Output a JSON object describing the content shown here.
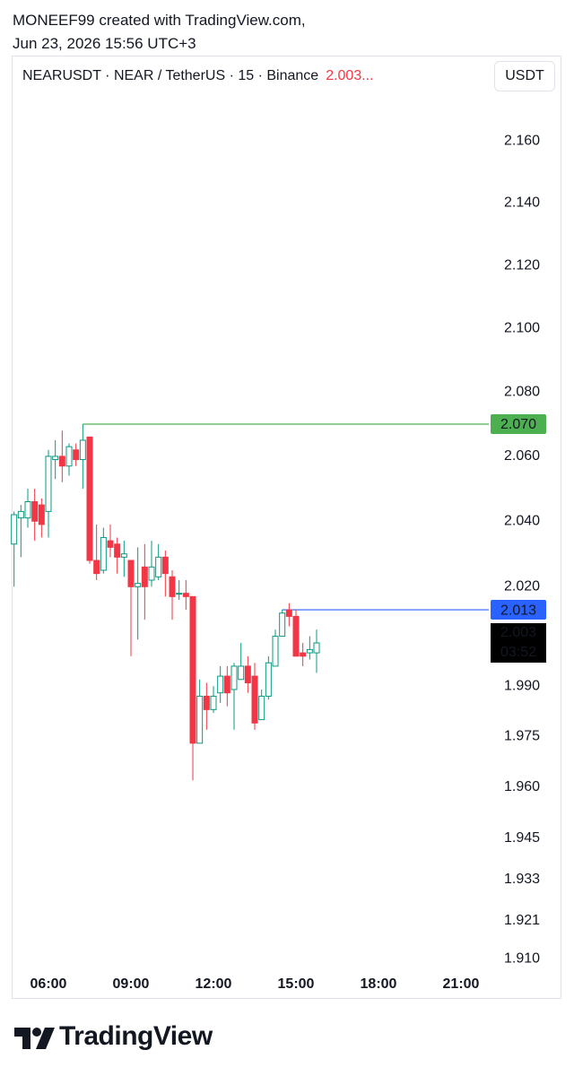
{
  "header": {
    "line1": "MONEEF99 created with TradingView.com,",
    "line2": "Jun 23, 2026 15:56 UTC+3"
  },
  "chart_data": {
    "type": "candlestick",
    "symbol_label": "NEARUSDT · NEAR / TetherUS · 15 · Binance",
    "last_price_label": "2.003...",
    "currency": "USDT",
    "log_scale": true,
    "up_color": "#089981",
    "down_color": "#f23645",
    "x": [
      "04:45",
      "05:00",
      "05:15",
      "05:30",
      "05:45",
      "06:00",
      "06:15",
      "06:30",
      "06:45",
      "07:00",
      "07:15",
      "07:30",
      "07:45",
      "08:00",
      "08:15",
      "08:30",
      "08:45",
      "09:00",
      "09:15",
      "09:30",
      "09:45",
      "10:00",
      "10:15",
      "10:30",
      "10:45",
      "11:00",
      "11:15",
      "11:30",
      "11:45",
      "12:00",
      "12:15",
      "12:30",
      "12:45",
      "13:00",
      "13:15",
      "13:30",
      "13:45",
      "14:00",
      "14:15",
      "14:30",
      "14:45",
      "15:00",
      "15:15",
      "15:30",
      "15:45"
    ],
    "open": [
      2.033,
      2.041,
      2.041,
      2.046,
      2.045,
      2.043,
      2.059,
      2.06,
      2.057,
      2.062,
      2.059,
      2.066,
      2.028,
      2.025,
      2.034,
      2.033,
      2.029,
      2.028,
      2.02,
      2.026,
      2.022,
      2.023,
      2.029,
      2.023,
      2.018,
      2.018,
      2.017,
      1.973,
      1.987,
      1.983,
      1.988,
      1.993,
      1.989,
      1.992,
      1.996,
      1.993,
      1.98,
      1.987,
      1.996,
      2.005,
      2.013,
      2.011,
      2.0,
      2.0,
      2.0
    ],
    "high": [
      2.043,
      2.045,
      2.05,
      2.05,
      2.047,
      2.062,
      2.065,
      2.068,
      2.064,
      2.064,
      2.07,
      2.066,
      2.039,
      2.038,
      2.039,
      2.035,
      2.034,
      2.028,
      2.032,
      2.033,
      2.034,
      2.033,
      2.031,
      2.025,
      2.022,
      2.022,
      2.017,
      1.992,
      1.991,
      1.99,
      1.996,
      1.996,
      1.997,
      2.003,
      1.999,
      1.997,
      1.989,
      1.999,
      2.007,
      2.013,
      2.015,
      2.013,
      2.003,
      2.005,
      2.007
    ],
    "low": [
      2.02,
      2.029,
      2.038,
      2.034,
      2.035,
      2.035,
      2.053,
      2.052,
      2.054,
      2.057,
      2.05,
      2.027,
      2.022,
      2.024,
      2.029,
      2.024,
      2.023,
      1.999,
      2.004,
      2.01,
      2.02,
      2.022,
      2.017,
      2.01,
      2.016,
      2.013,
      1.962,
      1.973,
      1.977,
      1.982,
      1.985,
      1.984,
      1.977,
      1.992,
      1.988,
      1.977,
      1.98,
      1.986,
      1.996,
      2.005,
      2.008,
      1.999,
      1.996,
      1.998,
      1.994
    ],
    "close": [
      2.042,
      2.043,
      2.046,
      2.04,
      2.039,
      2.06,
      2.06,
      2.057,
      2.063,
      2.059,
      2.065,
      2.028,
      2.024,
      2.035,
      2.032,
      2.029,
      2.03,
      2.02,
      2.021,
      2.02,
      2.026,
      2.029,
      2.024,
      2.017,
      2.018,
      2.017,
      1.973,
      1.987,
      1.983,
      1.987,
      1.993,
      1.988,
      1.996,
      1.996,
      1.991,
      1.979,
      1.987,
      1.997,
      2.005,
      2.012,
      2.011,
      1.999,
      1.999,
      2.001,
      2.003
    ],
    "ylim": [
      1.906,
      2.188
    ],
    "yticks": [
      {
        "value": 2.16,
        "label": "2.160"
      },
      {
        "value": 2.14,
        "label": "2.140"
      },
      {
        "value": 2.12,
        "label": "2.120"
      },
      {
        "value": 2.1,
        "label": "2.100"
      },
      {
        "value": 2.08,
        "label": "2.080"
      },
      {
        "value": 2.06,
        "label": "2.060"
      },
      {
        "value": 2.04,
        "label": "2.040"
      },
      {
        "value": 2.02,
        "label": "2.020"
      },
      {
        "value": 1.99,
        "label": "1.990"
      },
      1.975,
      {
        "value": 1.96,
        "label": "1.960"
      },
      1.945,
      1.933,
      1.921,
      {
        "value": 1.91,
        "label": "1.910"
      }
    ],
    "xticks": [
      "06:00",
      "09:00",
      "12:00",
      "15:00",
      "18:00",
      "21:00"
    ],
    "price_lines": [
      {
        "value": 2.07,
        "label": "2.070",
        "color": "#4caf50"
      },
      {
        "value": 2.013,
        "label": "2.013",
        "color": "#2962ff"
      }
    ],
    "last_price": {
      "value": 2.003,
      "label": "2.003",
      "countdown": "03:52"
    }
  },
  "footer": {
    "brand": "TradingView"
  }
}
